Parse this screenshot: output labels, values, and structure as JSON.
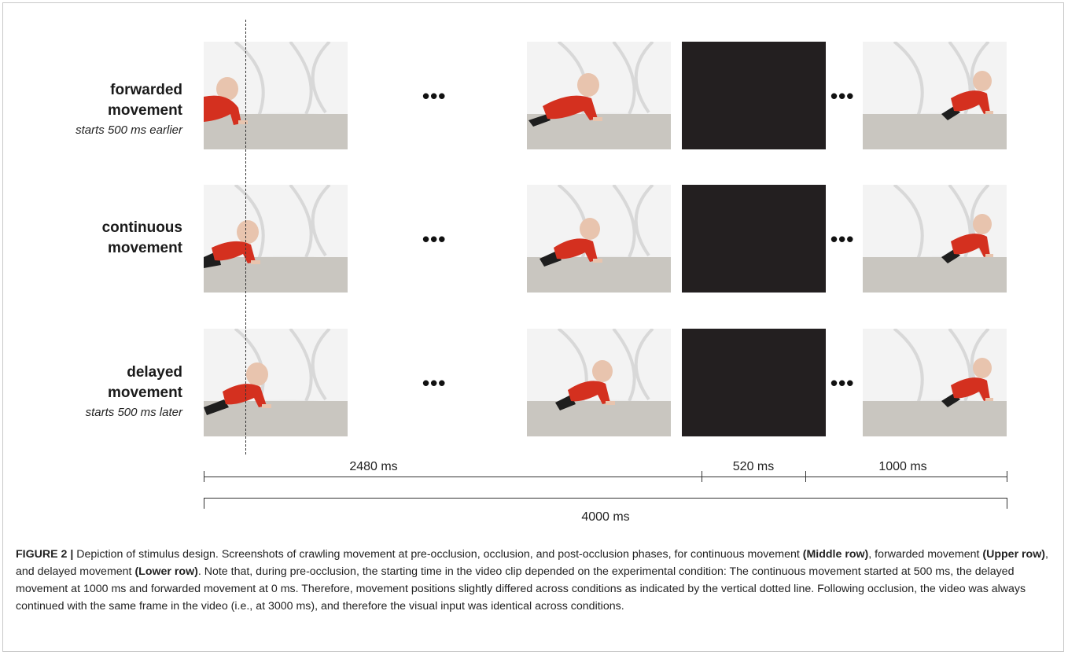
{
  "figure": {
    "rows": [
      {
        "line1": "forwarded",
        "line2": "movement",
        "sub": "starts 500 ms earlier"
      },
      {
        "line1": "continuous",
        "line2": "movement",
        "sub": ""
      },
      {
        "line1": "delayed",
        "line2": "movement",
        "sub": "starts 500 ms later"
      }
    ],
    "ellipsis": "•••",
    "timeline": {
      "pre_occlusion": "2480 ms",
      "occlusion": "520 ms",
      "post_occlusion": "1000 ms",
      "total": "4000 ms"
    }
  },
  "caption": {
    "fig_id": "FIGURE 2 |",
    "p1": " Depiction of stimulus design. Screenshots of crawling movement at pre-occlusion, occlusion, and post-occlusion phases, for continuous movement ",
    "b1": "(Middle row)",
    "p2": ", forwarded movement ",
    "b2": "(Upper row)",
    "p3": ", and delayed movement ",
    "b3": "(Lower row)",
    "p4": ". Note that, during pre-occlusion, the starting time in the video clip depended on the experimental condition: The continuous movement started at 500 ms, the delayed movement at 1000 ms and forwarded movement at 0 ms. Therefore, movement positions slightly differed across conditions as indicated by the vertical dotted line. Following occlusion, the video was always continued with the same frame in the video (i.e., at 3000 ms), and therefore the visual input was identical across conditions."
  },
  "colors": {
    "occluder": "#231f20",
    "shirt": "#d4301f",
    "curtain": "#ececec",
    "floor": "#c9c6c0"
  }
}
